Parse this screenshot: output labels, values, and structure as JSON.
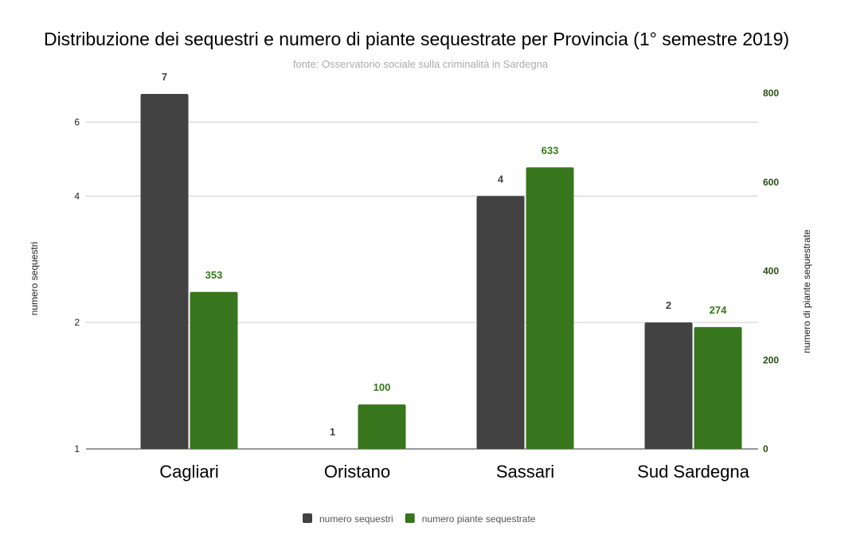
{
  "chart_data": {
    "type": "bar",
    "title": "Distribuzione dei sequestri e numero di piante sequestrate per Provincia (1° semestre 2019)",
    "subtitle": "fonte: Osservatorio sociale sulla criminalità in Sardegna",
    "categories": [
      "Cagliari",
      "Oristano",
      "Sassari",
      "Sud Sardegna"
    ],
    "series": [
      {
        "name": "numero sequestri",
        "values": [
          7,
          1,
          4,
          2
        ],
        "color": "#424242",
        "axis": "left"
      },
      {
        "name": "numero piante sequestrate",
        "values": [
          353,
          100,
          633,
          274
        ],
        "color": "#38761d",
        "axis": "right"
      }
    ],
    "y_left": {
      "label": "numero sequestri",
      "scale": "log",
      "ticks": [
        1,
        2,
        4,
        6
      ],
      "range": [
        1,
        7
      ]
    },
    "y_right": {
      "label": "numero di piante sequestrate",
      "scale": "linear",
      "ticks": [
        0,
        200,
        400,
        600,
        800
      ],
      "range": [
        0,
        800
      ]
    },
    "grid": true,
    "legend_position": "bottom"
  }
}
